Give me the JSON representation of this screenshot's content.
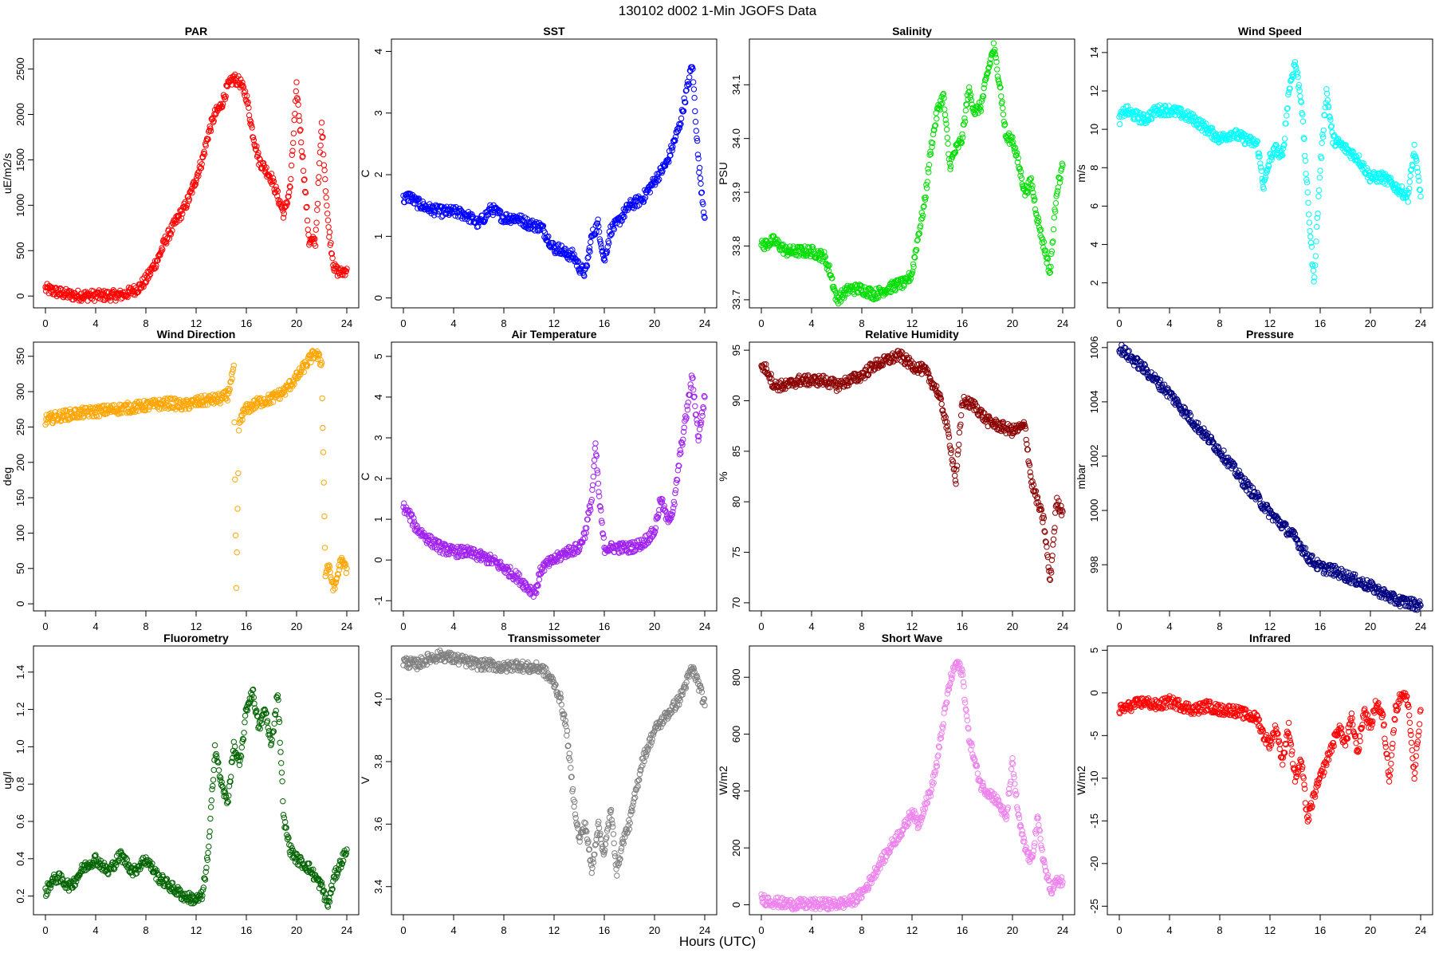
{
  "title": "130102   d002   1-Min  JGOFS Data",
  "xlabel": "Hours (UTC)",
  "chart_data": [
    {
      "type": "scatter",
      "title": "PAR",
      "ylabel": "uE/m2/s",
      "color": "#ff0000",
      "xlim": [
        0,
        24
      ],
      "ylim": [
        -130,
        2830
      ],
      "xticks": [
        0,
        4,
        8,
        12,
        16,
        20,
        24
      ],
      "yticks": [
        0,
        500,
        1000,
        1500,
        2000,
        2500
      ],
      "ytick_labels": [
        "0",
        "500",
        "1000",
        "1500",
        "2000",
        "2500"
      ],
      "x": [
        0,
        1,
        2,
        3,
        4,
        5,
        6,
        6.5,
        7,
        7.5,
        8,
        8.5,
        9,
        9.5,
        10,
        10.5,
        11,
        11.5,
        12,
        12.5,
        13,
        13.5,
        14,
        14.5,
        15,
        15.5,
        16,
        16.5,
        17,
        17.5,
        18,
        18.5,
        19,
        19.5,
        20,
        20.5,
        21,
        21.5,
        22,
        22.5,
        23,
        23.5,
        24
      ],
      "y": [
        80,
        40,
        10,
        5,
        5,
        5,
        10,
        30,
        60,
        100,
        180,
        300,
        420,
        600,
        720,
        850,
        950,
        1100,
        1300,
        1500,
        1800,
        2000,
        2100,
        2300,
        2400,
        2350,
        2200,
        1800,
        1500,
        1400,
        1300,
        1100,
        900,
        1200,
        2300,
        1500,
        600,
        600,
        1900,
        800,
        300,
        250,
        300
      ]
    },
    {
      "type": "scatter",
      "title": "SST",
      "ylabel": "C",
      "color": "#0000ff",
      "xlim": [
        0,
        24
      ],
      "ylim": [
        -0.16,
        4.2
      ],
      "xticks": [
        0,
        4,
        8,
        12,
        16,
        20,
        24
      ],
      "yticks": [
        0,
        1,
        2,
        3,
        4
      ],
      "ytick_labels": [
        "0",
        "1",
        "2",
        "3",
        "4"
      ],
      "x": [
        0,
        0.5,
        1,
        2,
        3,
        4,
        5,
        6,
        7,
        8,
        9,
        10,
        11,
        12,
        12.5,
        13,
        13.5,
        14,
        14.5,
        15,
        15.5,
        16,
        16.5,
        17,
        18,
        19,
        20,
        21,
        22,
        22.5,
        23,
        23.5,
        24
      ],
      "y": [
        1.6,
        1.65,
        1.55,
        1.45,
        1.4,
        1.4,
        1.35,
        1.2,
        1.45,
        1.3,
        1.3,
        1.2,
        1.15,
        0.8,
        0.8,
        0.7,
        0.7,
        0.5,
        0.4,
        1.0,
        1.2,
        0.6,
        1.1,
        1.2,
        1.5,
        1.6,
        1.9,
        2.2,
        2.8,
        3.3,
        3.8,
        2.2,
        1.3
      ]
    },
    {
      "type": "scatter",
      "title": "Salinity",
      "ylabel": "PSU",
      "color": "#00dd00",
      "xlim": [
        0,
        24
      ],
      "ylim": [
        33.685,
        34.185
      ],
      "xticks": [
        0,
        4,
        8,
        12,
        16,
        20,
        24
      ],
      "yticks": [
        33.7,
        33.8,
        33.9,
        34.0,
        34.1
      ],
      "ytick_labels": [
        "33.7",
        "33.8",
        "33.9",
        "34.0",
        "34.1"
      ],
      "x": [
        0,
        1,
        1.5,
        2,
        3,
        4,
        5,
        5.5,
        6,
        6.5,
        7,
        8,
        9,
        10,
        11,
        11.5,
        12,
        12.5,
        13,
        13.5,
        14,
        14.5,
        15,
        15.5,
        16,
        16.5,
        17,
        17.5,
        18,
        18.5,
        19,
        19.5,
        20,
        20.5,
        21,
        21.5,
        22,
        22.5,
        23,
        23.5,
        24
      ],
      "y": [
        33.8,
        33.81,
        33.8,
        33.79,
        33.79,
        33.79,
        33.78,
        33.75,
        33.7,
        33.71,
        33.72,
        33.72,
        33.71,
        33.72,
        33.73,
        33.73,
        33.75,
        33.82,
        33.88,
        33.98,
        34.05,
        34.08,
        33.95,
        33.98,
        34.0,
        34.09,
        34.05,
        34.06,
        34.12,
        34.17,
        34.1,
        34.0,
        34.0,
        33.95,
        33.9,
        33.92,
        33.85,
        33.8,
        33.75,
        33.9,
        33.95
      ]
    },
    {
      "type": "scatter",
      "title": "Wind Speed",
      "ylabel": "m/s",
      "color": "#00ffff",
      "xlim": [
        0,
        24
      ],
      "ylim": [
        0.7,
        14.7
      ],
      "xticks": [
        0,
        4,
        8,
        12,
        16,
        20,
        24
      ],
      "yticks": [
        2,
        4,
        6,
        8,
        10,
        12,
        14
      ],
      "ytick_labels": [
        "2",
        "4",
        "6",
        "8",
        "10",
        "12",
        "14"
      ],
      "x": [
        0,
        0.5,
        1,
        2,
        3,
        4,
        5,
        6,
        7,
        8,
        9,
        10,
        11,
        11.5,
        12,
        12.5,
        13,
        13.5,
        14,
        14.5,
        15,
        15.5,
        16,
        16.5,
        17,
        18,
        19,
        20,
        21,
        22,
        23,
        23.5,
        24
      ],
      "y": [
        10.5,
        11,
        10.8,
        10.5,
        11,
        11,
        10.8,
        10.5,
        10,
        9.5,
        9.8,
        9.5,
        9.2,
        7,
        8.5,
        9,
        8.5,
        12,
        13.5,
        11.5,
        6.5,
        2,
        8,
        12,
        9.5,
        9,
        8.5,
        7.5,
        7.5,
        7,
        6.5,
        9,
        6.5
      ]
    },
    {
      "type": "scatter",
      "title": "Wind Direction",
      "ylabel": "deg",
      "color": "#ffa500",
      "xlim": [
        0,
        24
      ],
      "ylim": [
        -10,
        370
      ],
      "xticks": [
        0,
        4,
        8,
        12,
        16,
        20,
        24
      ],
      "yticks": [
        0,
        50,
        100,
        150,
        200,
        250,
        300,
        350
      ],
      "ytick_labels": [
        "0",
        "50",
        "100",
        "150",
        "200",
        "250",
        "300",
        "350"
      ],
      "x": [
        0,
        1,
        2,
        3,
        4,
        5,
        6,
        7,
        8,
        9,
        10,
        11,
        12,
        13,
        14,
        14.5,
        15,
        15.2,
        15.4,
        15.6,
        16,
        17,
        18,
        19,
        20,
        21,
        21.5,
        22,
        22.3,
        22.5,
        23,
        23.5,
        24
      ],
      "y": [
        260,
        265,
        268,
        270,
        272,
        274,
        276,
        278,
        280,
        282,
        284,
        280,
        285,
        288,
        290,
        295,
        330,
        15,
        245,
        265,
        275,
        285,
        290,
        300,
        320,
        345,
        355,
        340,
        40,
        55,
        20,
        60,
        50
      ]
    },
    {
      "type": "scatter",
      "title": "Air Temperature",
      "ylabel": "C",
      "color": "#a020f0",
      "xlim": [
        0,
        24
      ],
      "ylim": [
        -1.25,
        5.35
      ],
      "xticks": [
        0,
        4,
        8,
        12,
        16,
        20,
        24
      ],
      "yticks": [
        -1,
        0,
        1,
        2,
        3,
        4,
        5
      ],
      "ytick_labels": [
        "-1",
        "0",
        "1",
        "2",
        "3",
        "4",
        "5"
      ],
      "x": [
        0,
        0.5,
        1,
        2,
        3,
        4,
        5,
        6,
        7,
        8,
        9,
        10,
        10.5,
        11,
        12,
        13,
        14,
        14.5,
        15,
        15.3,
        15.6,
        16,
        17,
        18,
        19,
        20,
        20.5,
        21,
        21.5,
        22,
        22.5,
        23,
        23.5,
        24
      ],
      "y": [
        1.3,
        1.1,
        0.8,
        0.5,
        0.3,
        0.2,
        0.2,
        0.1,
        0.0,
        -0.2,
        -0.4,
        -0.7,
        -0.8,
        -0.2,
        0.0,
        0.2,
        0.3,
        0.7,
        1.5,
        2.8,
        1.5,
        0.3,
        0.3,
        0.3,
        0.4,
        0.7,
        1.5,
        1.0,
        1.2,
        2.5,
        3.5,
        4.5,
        3.0,
        4.0
      ]
    },
    {
      "type": "scatter",
      "title": "Relative Humidity",
      "ylabel": "%",
      "color": "#8b0000",
      "xlim": [
        0,
        24
      ],
      "ylim": [
        69.2,
        95.8
      ],
      "xticks": [
        0,
        4,
        8,
        12,
        16,
        20,
        24
      ],
      "yticks": [
        70,
        75,
        80,
        85,
        90,
        95
      ],
      "ytick_labels": [
        "70",
        "75",
        "80",
        "85",
        "90",
        "95"
      ],
      "x": [
        0,
        0.5,
        1,
        2,
        3,
        4,
        5,
        6,
        7,
        8,
        9,
        10,
        11,
        12,
        13,
        14,
        14.5,
        15,
        15.5,
        16,
        17,
        18,
        19,
        20,
        21,
        21.5,
        22,
        22.5,
        23,
        23.5,
        24
      ],
      "y": [
        93.5,
        93,
        91.5,
        91.5,
        92,
        92,
        92,
        91.5,
        92,
        92.5,
        93.5,
        94,
        94.5,
        93.5,
        93,
        91,
        89,
        86,
        82,
        90,
        89.5,
        88,
        87.5,
        87,
        87.5,
        82,
        80,
        78,
        72,
        80,
        79
      ]
    },
    {
      "type": "scatter",
      "title": "Pressure",
      "ylabel": "mbar",
      "color": "#000080",
      "xlim": [
        0,
        24
      ],
      "ylim": [
        996.3,
        1006.2
      ],
      "xticks": [
        0,
        4,
        8,
        12,
        16,
        20,
        24
      ],
      "yticks": [
        998,
        1000,
        1002,
        1004,
        1006
      ],
      "ytick_labels": [
        "998",
        "1000",
        "1002",
        "1004",
        "1006"
      ],
      "x": [
        0,
        2,
        4,
        6,
        8,
        10,
        12,
        14,
        15,
        16,
        17,
        18,
        20,
        22,
        24
      ],
      "y": [
        1006,
        1005.2,
        1004.3,
        1003.2,
        1002.2,
        1001,
        999.9,
        999,
        998.3,
        997.9,
        997.8,
        997.6,
        997.2,
        996.7,
        996.5
      ]
    },
    {
      "type": "scatter",
      "title": "Fluorometry",
      "ylabel": "ug/l",
      "color": "#006400",
      "xlim": [
        0,
        24
      ],
      "ylim": [
        0.1,
        1.54
      ],
      "xticks": [
        0,
        4,
        8,
        12,
        16,
        20,
        24
      ],
      "yticks": [
        0.2,
        0.4,
        0.6,
        0.8,
        1.0,
        1.2,
        1.4
      ],
      "ytick_labels": [
        "0.2",
        "0.4",
        "0.6",
        "0.8",
        "1.0",
        "1.2",
        "1.4"
      ],
      "x": [
        0,
        0.5,
        1,
        2,
        3,
        4,
        5,
        6,
        7,
        8,
        9,
        10,
        11,
        12,
        12.5,
        13,
        13.5,
        14,
        14.5,
        15,
        15.5,
        16,
        16.5,
        17,
        17.5,
        18,
        18.5,
        19,
        19.5,
        20,
        21,
        22,
        22.5,
        23,
        24
      ],
      "y": [
        0.22,
        0.28,
        0.3,
        0.25,
        0.35,
        0.4,
        0.33,
        0.42,
        0.33,
        0.4,
        0.3,
        0.25,
        0.2,
        0.18,
        0.2,
        0.45,
        1.0,
        0.8,
        0.7,
        1.0,
        0.9,
        1.2,
        1.3,
        1.1,
        1.2,
        1.0,
        1.3,
        0.6,
        0.45,
        0.4,
        0.35,
        0.25,
        0.15,
        0.3,
        0.45
      ]
    },
    {
      "type": "scatter",
      "title": "Transmissometer",
      "ylabel": "V",
      "color": "#808080",
      "xlim": [
        0,
        24
      ],
      "ylim": [
        3.31,
        4.17
      ],
      "xticks": [
        0,
        4,
        8,
        12,
        16,
        20,
        24
      ],
      "yticks": [
        3.4,
        3.6,
        3.8,
        4.0
      ],
      "ytick_labels": [
        "3.4",
        "3.6",
        "3.8",
        "4.0"
      ],
      "x": [
        0,
        1,
        2,
        3,
        4,
        5,
        6,
        7,
        8,
        9,
        10,
        11,
        12,
        12.5,
        13,
        13.5,
        14,
        14.5,
        15,
        15.5,
        16,
        16.5,
        17,
        17.5,
        18,
        18.5,
        19,
        19.5,
        20,
        21,
        22,
        22.5,
        23,
        23.5,
        24
      ],
      "y": [
        4.12,
        4.11,
        4.13,
        4.14,
        4.13,
        4.12,
        4.11,
        4.11,
        4.1,
        4.11,
        4.1,
        4.1,
        4.05,
        4.0,
        3.9,
        3.7,
        3.55,
        3.6,
        3.45,
        3.6,
        3.5,
        3.65,
        3.45,
        3.55,
        3.6,
        3.7,
        3.8,
        3.85,
        3.9,
        3.95,
        4.0,
        4.05,
        4.1,
        4.05,
        3.98
      ]
    },
    {
      "type": "scatter",
      "title": "Short Wave",
      "ylabel": "W/m2",
      "color": "#ee82ee",
      "xlim": [
        0,
        24
      ],
      "ylim": [
        -35,
        910
      ],
      "xticks": [
        0,
        4,
        8,
        12,
        16,
        20,
        24
      ],
      "yticks": [
        0,
        200,
        400,
        600,
        800
      ],
      "ytick_labels": [
        "0",
        "200",
        "400",
        "600",
        "800"
      ],
      "x": [
        0,
        1,
        2,
        3,
        4,
        5,
        6,
        6.5,
        7,
        7.5,
        8,
        8.5,
        9,
        9.5,
        10,
        10.5,
        11,
        11.5,
        12,
        12.5,
        13,
        13.5,
        14,
        14.5,
        15,
        15.5,
        16,
        16.5,
        17,
        17.5,
        18,
        18.5,
        19,
        19.5,
        20,
        20.5,
        21,
        21.5,
        22,
        22.5,
        23,
        23.5,
        24
      ],
      "y": [
        20,
        10,
        3,
        2,
        2,
        2,
        3,
        5,
        10,
        20,
        40,
        70,
        110,
        150,
        180,
        220,
        250,
        280,
        330,
        280,
        350,
        400,
        500,
        650,
        780,
        850,
        820,
        600,
        500,
        420,
        400,
        380,
        350,
        300,
        500,
        300,
        200,
        150,
        300,
        150,
        50,
        80,
        80
      ]
    },
    {
      "type": "scatter",
      "title": "Infrared",
      "ylabel": "W/m2",
      "color": "#ff0000",
      "xlim": [
        0,
        24
      ],
      "ylim": [
        -26,
        5.5
      ],
      "xticks": [
        0,
        4,
        8,
        12,
        16,
        20,
        24
      ],
      "yticks": [
        -25,
        -20,
        -15,
        -10,
        -5,
        0,
        5
      ],
      "ytick_labels": [
        "-25",
        "-20",
        "-15",
        "-10",
        "-5",
        "0",
        "5"
      ],
      "x": [
        0,
        1,
        2,
        3,
        4,
        5,
        6,
        7,
        8,
        9,
        10,
        11,
        11.5,
        12,
        12.5,
        13,
        13.5,
        14,
        14.5,
        15,
        15.5,
        16,
        16.5,
        17,
        17.5,
        18,
        18.5,
        19,
        19.5,
        20,
        20.5,
        21,
        21.5,
        22,
        22.5,
        23,
        23.5,
        24
      ],
      "y": [
        -2,
        -1.5,
        -1,
        -1.5,
        -1,
        -1.5,
        -2,
        -1.5,
        -2,
        -2,
        -2.5,
        -3,
        -5,
        -6,
        -4,
        -8,
        -4,
        -10,
        -8,
        -15,
        -12,
        -10,
        -8,
        -6,
        -4,
        -6,
        -3,
        -7,
        -2,
        -4,
        -1,
        -3,
        -10,
        -2,
        0,
        -1,
        -10,
        -2
      ]
    }
  ]
}
